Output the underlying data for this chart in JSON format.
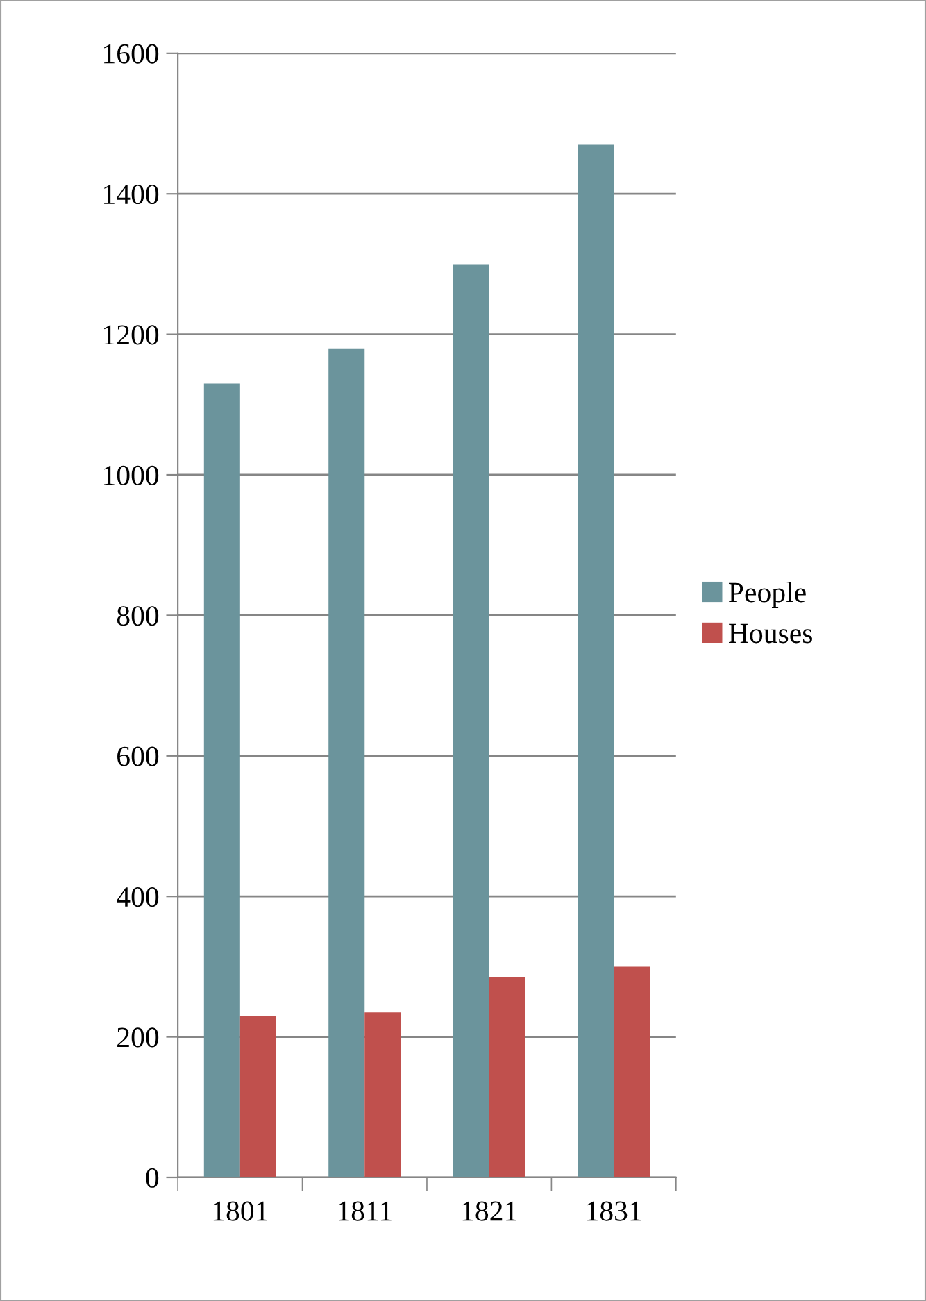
{
  "chart_data": {
    "type": "bar",
    "categories": [
      "1801",
      "1811",
      "1821",
      "1831"
    ],
    "series": [
      {
        "name": "People",
        "color": "#6b949c",
        "values": [
          1130,
          1180,
          1300,
          1470
        ]
      },
      {
        "name": "Houses",
        "color": "#c0504d",
        "values": [
          230,
          235,
          285,
          300
        ]
      }
    ],
    "ylim": [
      0,
      1600
    ],
    "yticks": [
      0,
      200,
      400,
      600,
      800,
      1000,
      1200,
      1400,
      1600
    ],
    "grid": "y",
    "legend": "right"
  }
}
